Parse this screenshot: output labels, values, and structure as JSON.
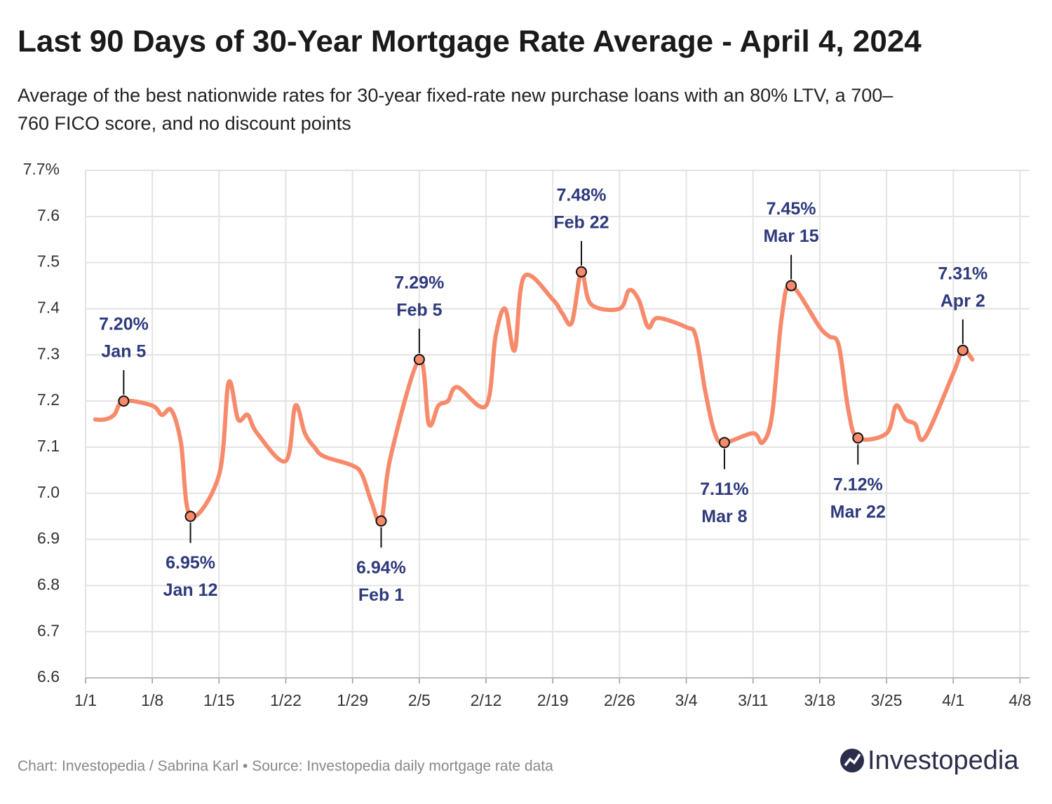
{
  "chart_data": {
    "type": "line",
    "title": "Last 90 Days of 30-Year Mortgage Rate Average - April 4, 2024",
    "subtitle": [
      "Average of the best nationwide rates for 30-year fixed-rate new purchase loans with an 80% LTV, a 700–",
      "760 FICO score, and no discount points"
    ],
    "x": [
      "1/2",
      "1/3",
      "1/4",
      "1/5",
      "1/8",
      "1/9",
      "1/10",
      "1/11",
      "1/12",
      "1/15",
      "1/16",
      "1/17",
      "1/18",
      "1/19",
      "1/22",
      "1/23",
      "1/24",
      "1/25",
      "1/26",
      "1/29",
      "1/30",
      "1/31",
      "2/1",
      "2/2",
      "2/5",
      "2/6",
      "2/7",
      "2/8",
      "2/9",
      "2/12",
      "2/13",
      "2/14",
      "2/15",
      "2/16",
      "2/19",
      "2/20",
      "2/21",
      "2/22",
      "2/23",
      "2/26",
      "2/27",
      "2/28",
      "2/29",
      "3/1",
      "3/4",
      "3/5",
      "3/6",
      "3/7",
      "3/8",
      "3/11",
      "3/12",
      "3/13",
      "3/14",
      "3/15",
      "3/18",
      "3/19",
      "3/20",
      "3/21",
      "3/22",
      "3/25",
      "3/26",
      "3/27",
      "3/28",
      "3/29",
      "4/1",
      "4/2",
      "4/3"
    ],
    "series": [
      {
        "name": "30-Year Mortgage Rate Average",
        "color": "#f88a6c",
        "values": [
          7.16,
          7.16,
          7.17,
          7.2,
          7.19,
          7.17,
          7.18,
          7.11,
          6.95,
          7.04,
          7.24,
          7.16,
          7.17,
          7.13,
          7.07,
          7.19,
          7.13,
          7.1,
          7.08,
          7.06,
          7.04,
          6.98,
          6.94,
          7.08,
          7.29,
          7.15,
          7.19,
          7.2,
          7.23,
          7.19,
          7.34,
          7.4,
          7.31,
          7.47,
          7.42,
          7.39,
          7.37,
          7.48,
          7.41,
          7.4,
          7.44,
          7.42,
          7.36,
          7.38,
          7.36,
          7.34,
          7.22,
          7.13,
          7.11,
          7.13,
          7.11,
          7.17,
          7.38,
          7.45,
          7.36,
          7.34,
          7.32,
          7.18,
          7.12,
          7.13,
          7.19,
          7.16,
          7.15,
          7.12,
          7.26,
          7.31,
          7.29
        ]
      }
    ],
    "annotations": [
      {
        "x": "1/5",
        "label": "7.20%",
        "date": "Jan 5",
        "position": "above"
      },
      {
        "x": "1/12",
        "label": "6.95%",
        "date": "Jan 12",
        "position": "below"
      },
      {
        "x": "2/1",
        "label": "6.94%",
        "date": "Feb 1",
        "position": "below"
      },
      {
        "x": "2/5",
        "label": "7.29%",
        "date": "Feb 5",
        "position": "above"
      },
      {
        "x": "2/22",
        "label": "7.48%",
        "date": "Feb 22",
        "position": "above"
      },
      {
        "x": "3/8",
        "label": "7.11%",
        "date": "Mar 8",
        "position": "below"
      },
      {
        "x": "3/15",
        "label": "7.45%",
        "date": "Mar 15",
        "position": "above"
      },
      {
        "x": "3/22",
        "label": "7.12%",
        "date": "Mar 22",
        "position": "below"
      },
      {
        "x": "4/2",
        "label": "7.31%",
        "date": "Apr 2",
        "position": "above"
      }
    ],
    "xlim": [
      "1/1",
      "4/9"
    ],
    "xticks": [
      "1/1",
      "1/8",
      "1/15",
      "1/22",
      "1/29",
      "2/5",
      "2/12",
      "2/19",
      "2/26",
      "3/4",
      "3/11",
      "3/18",
      "3/25",
      "4/1",
      "4/8"
    ],
    "ylim": [
      6.6,
      7.7
    ],
    "yticks": [
      6.6,
      6.7,
      6.8,
      6.9,
      {
        "value": 7,
        "label": "7.0"
      },
      7.1,
      7.2,
      7.3,
      7.4,
      7.5,
      7.6,
      {
        "value": 7.7,
        "label": "7.7%"
      }
    ],
    "grid": true,
    "source": "Chart: Investopedia / Sabrina Karl • Source: Investopedia daily mortgage rate data",
    "logo": "Investopedia"
  }
}
